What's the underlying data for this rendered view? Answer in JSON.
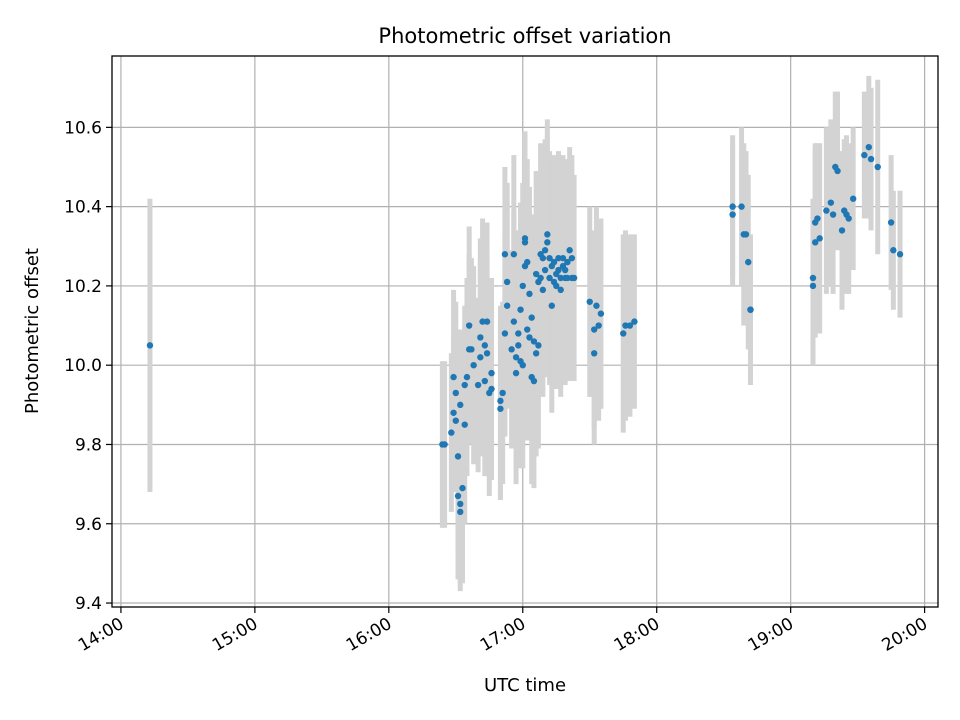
{
  "chart_data": {
    "type": "scatter",
    "title": "Photometric offset variation",
    "xlabel": "UTC time",
    "ylabel": "Photometric offset",
    "x_tick_labels": [
      "14:00",
      "15:00",
      "16:00",
      "17:00",
      "18:00",
      "19:00",
      "20:00"
    ],
    "y_tick_labels": [
      "9.4",
      "9.6",
      "9.8",
      "10.0",
      "10.2",
      "10.4",
      "10.6"
    ],
    "xlim": [
      "13:56",
      "20:06"
    ],
    "ylim": [
      9.39,
      10.78
    ],
    "grid": true,
    "colors": {
      "points": "#1f77b4",
      "errorbars": "#d3d3d3",
      "grid": "#b0b0b0"
    },
    "series": [
      {
        "points": [
          [
            "14:13",
            10.05,
            0.37
          ],
          [
            "16:24",
            9.8,
            0.21
          ],
          [
            "16:25",
            9.8,
            0.21
          ],
          [
            "16:28",
            9.83,
            0.2
          ],
          [
            "16:29",
            9.88,
            0.2
          ],
          [
            "16:29",
            9.97,
            0.22
          ],
          [
            "16:30",
            9.93,
            0.23
          ],
          [
            "16:30",
            9.86,
            0.18
          ],
          [
            "16:31",
            9.77,
            0.24
          ],
          [
            "16:31",
            9.67,
            0.21
          ],
          [
            "16:32",
            9.65,
            0.22
          ],
          [
            "16:32",
            9.63,
            0.18
          ],
          [
            "16:32",
            9.9,
            0.19
          ],
          [
            "16:33",
            9.69,
            0.24
          ],
          [
            "16:34",
            9.85,
            0.25
          ],
          [
            "16:34",
            9.95,
            0.2
          ],
          [
            "16:35",
            9.97,
            0.25
          ],
          [
            "16:36",
            10.04,
            0.24
          ],
          [
            "16:36",
            10.1,
            0.25
          ],
          [
            "16:37",
            10.04,
            0.23
          ],
          [
            "16:38",
            10.0,
            0.25
          ],
          [
            "16:40",
            9.95,
            0.22
          ],
          [
            "16:41",
            10.02,
            0.25
          ],
          [
            "16:41",
            10.07,
            0.25
          ],
          [
            "16:42",
            10.11,
            0.26
          ],
          [
            "16:43",
            9.96,
            0.24
          ],
          [
            "16:43",
            10.05,
            0.26
          ],
          [
            "16:44",
            10.03,
            0.25
          ],
          [
            "16:44",
            10.11,
            0.25
          ],
          [
            "16:45",
            9.93,
            0.26
          ],
          [
            "16:46",
            9.98,
            0.24
          ],
          [
            "16:46",
            9.94,
            0.23
          ],
          [
            "16:50",
            9.91,
            0.24
          ],
          [
            "16:50",
            9.89,
            0.23
          ],
          [
            "16:51",
            9.93,
            0.23
          ],
          [
            "16:52",
            10.08,
            0.26
          ],
          [
            "16:52",
            10.28,
            0.22
          ],
          [
            "16:53",
            10.15,
            0.26
          ],
          [
            "16:53",
            10.21,
            0.25
          ],
          [
            "16:55",
            10.04,
            0.25
          ],
          [
            "16:56",
            10.28,
            0.25
          ],
          [
            "16:56",
            10.11,
            0.28
          ],
          [
            "16:57",
            9.98,
            0.28
          ],
          [
            "16:57",
            10.02,
            0.26
          ],
          [
            "16:58",
            10.05,
            0.25
          ],
          [
            "16:58",
            10.08,
            0.26
          ],
          [
            "16:59",
            10.14,
            0.27
          ],
          [
            "16:59",
            10.01,
            0.27
          ],
          [
            "17:00",
            10.0,
            0.26
          ],
          [
            "17:00",
            10.2,
            0.26
          ],
          [
            "17:01",
            10.31,
            0.28
          ],
          [
            "17:01",
            10.25,
            0.24
          ],
          [
            "17:01",
            10.32,
            0.27
          ],
          [
            "17:02",
            10.09,
            0.28
          ],
          [
            "17:02",
            10.26,
            0.26
          ],
          [
            "17:03",
            10.18,
            0.27
          ],
          [
            "17:03",
            10.07,
            0.26
          ],
          [
            "17:04",
            10.12,
            0.26
          ],
          [
            "17:04",
            9.97,
            0.27
          ],
          [
            "17:05",
            10.06,
            0.26
          ],
          [
            "17:05",
            9.96,
            0.27
          ],
          [
            "17:06",
            10.03,
            0.26
          ],
          [
            "17:06",
            10.23,
            0.26
          ],
          [
            "17:07",
            10.21,
            0.27
          ],
          [
            "17:07",
            10.05,
            0.26
          ],
          [
            "17:08",
            10.22,
            0.27
          ],
          [
            "17:08",
            10.28,
            0.28
          ],
          [
            "17:09",
            10.27,
            0.28
          ],
          [
            "17:09",
            10.19,
            0.27
          ],
          [
            "17:10",
            10.29,
            0.28
          ],
          [
            "17:10",
            10.24,
            0.27
          ],
          [
            "17:11",
            10.33,
            0.29
          ],
          [
            "17:11",
            10.31,
            0.27
          ],
          [
            "17:12",
            10.27,
            0.27
          ],
          [
            "17:12",
            10.22,
            0.27
          ],
          [
            "17:13",
            10.15,
            0.27
          ],
          [
            "17:13",
            10.25,
            0.26
          ],
          [
            "17:14",
            10.26,
            0.27
          ],
          [
            "17:14",
            10.21,
            0.26
          ],
          [
            "17:15",
            10.2,
            0.26
          ],
          [
            "17:15",
            10.23,
            0.27
          ],
          [
            "17:16",
            10.27,
            0.27
          ],
          [
            "17:16",
            10.24,
            0.27
          ],
          [
            "17:17",
            10.19,
            0.27
          ],
          [
            "17:17",
            10.22,
            0.27
          ],
          [
            "17:18",
            10.25,
            0.26
          ],
          [
            "17:18",
            10.27,
            0.26
          ],
          [
            "17:19",
            10.22,
            0.27
          ],
          [
            "17:19",
            10.24,
            0.27
          ],
          [
            "17:20",
            10.22,
            0.26
          ],
          [
            "17:20",
            10.26,
            0.26
          ],
          [
            "17:21",
            10.29,
            0.26
          ],
          [
            "17:22",
            10.27,
            0.26
          ],
          [
            "17:22",
            10.22,
            0.26
          ],
          [
            "17:23",
            10.22,
            0.26
          ],
          [
            "17:30",
            10.16,
            0.24
          ],
          [
            "17:32",
            10.09,
            0.25
          ],
          [
            "17:32",
            10.03,
            0.23
          ],
          [
            "17:33",
            10.15,
            0.25
          ],
          [
            "17:34",
            10.1,
            0.24
          ],
          [
            "17:35",
            10.13,
            0.24
          ],
          [
            "17:45",
            10.08,
            0.25
          ],
          [
            "17:46",
            10.1,
            0.24
          ],
          [
            "17:48",
            10.1,
            0.23
          ],
          [
            "17:50",
            10.11,
            0.22
          ],
          [
            "18:34",
            10.4,
            0.18
          ],
          [
            "18:34",
            10.38,
            0.18
          ],
          [
            "18:38",
            10.4,
            0.2
          ],
          [
            "18:39",
            10.33,
            0.23
          ],
          [
            "18:40",
            10.33,
            0.21
          ],
          [
            "18:41",
            10.26,
            0.22
          ],
          [
            "18:42",
            10.14,
            0.19
          ],
          [
            "18:42",
            10.14,
            0.18
          ],
          [
            "19:10",
            10.22,
            0.2
          ],
          [
            "19:10",
            10.2,
            0.2
          ],
          [
            "19:11",
            10.31,
            0.24
          ],
          [
            "19:11",
            10.36,
            0.2
          ],
          [
            "19:12",
            10.37,
            0.19
          ],
          [
            "19:13",
            10.32,
            0.24
          ],
          [
            "19:16",
            10.39,
            0.21
          ],
          [
            "19:18",
            10.41,
            0.21
          ],
          [
            "19:19",
            10.38,
            0.2
          ],
          [
            "19:20",
            10.5,
            0.19
          ],
          [
            "19:21",
            10.49,
            0.2
          ],
          [
            "19:23",
            10.34,
            0.2
          ],
          [
            "19:24",
            10.39,
            0.18
          ],
          [
            "19:25",
            10.38,
            0.2
          ],
          [
            "19:26",
            10.37,
            0.19
          ],
          [
            "19:28",
            10.42,
            0.18
          ],
          [
            "19:33",
            10.53,
            0.16
          ],
          [
            "19:35",
            10.55,
            0.18
          ],
          [
            "19:36",
            10.52,
            0.18
          ],
          [
            "19:39",
            10.5,
            0.22
          ],
          [
            "19:45",
            10.36,
            0.17
          ],
          [
            "19:46",
            10.29,
            0.15
          ],
          [
            "19:49",
            10.28,
            0.16
          ]
        ]
      }
    ]
  }
}
